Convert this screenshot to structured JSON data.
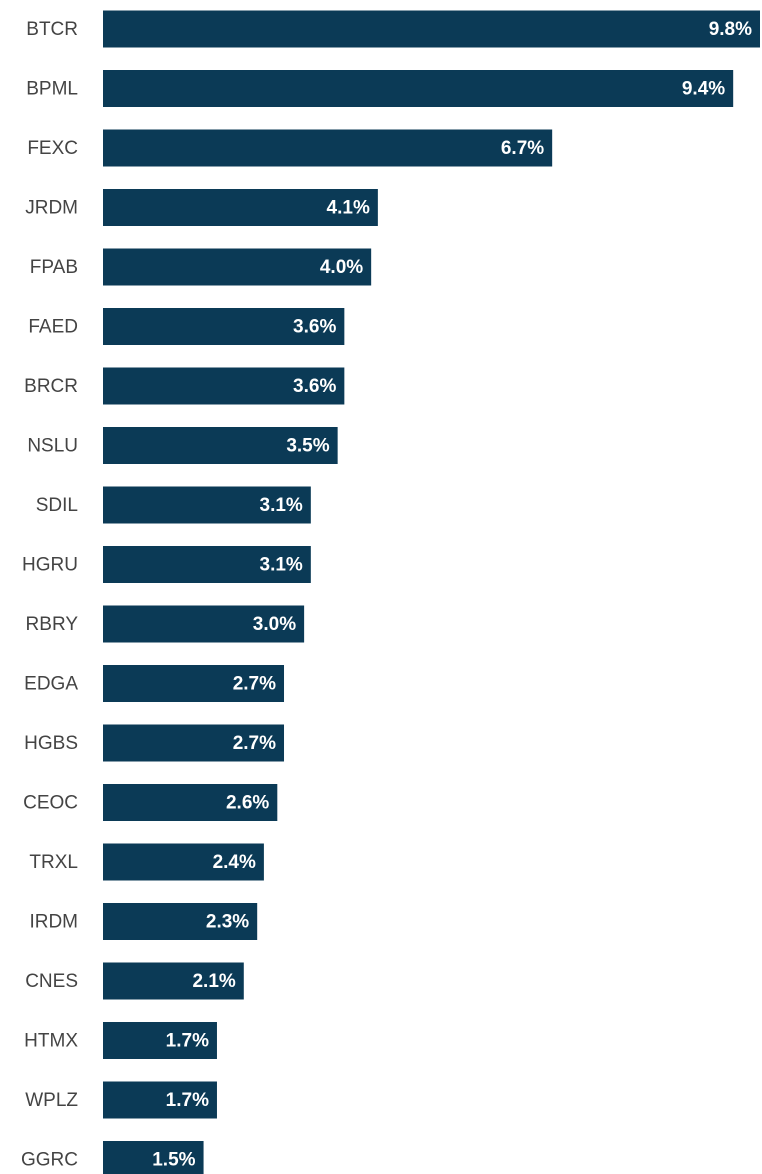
{
  "chart_data": {
    "type": "barh",
    "categories": [
      "BTCR",
      "BPML",
      "FEXC",
      "JRDM",
      "FPAB",
      "FAED",
      "BRCR",
      "NSLU",
      "SDIL",
      "HGRU",
      "RBRY",
      "EDGA",
      "HGBS",
      "CEOC",
      "TRXL",
      "IRDM",
      "CNES",
      "HTMX",
      "WPLZ",
      "GGRC"
    ],
    "values": [
      9.8,
      9.4,
      6.7,
      4.1,
      4.0,
      3.6,
      3.6,
      3.5,
      3.1,
      3.1,
      3.0,
      2.7,
      2.7,
      2.6,
      2.4,
      2.3,
      2.1,
      1.7,
      1.7,
      1.5
    ],
    "value_labels": [
      "9.8%",
      "9.4%",
      "6.7%",
      "4.1%",
      "4.0%",
      "3.6%",
      "3.6%",
      "3.5%",
      "3.1%",
      "3.1%",
      "3.0%",
      "2.7%",
      "2.7%",
      "2.6%",
      "2.4%",
      "2.3%",
      "2.1%",
      "1.7%",
      "1.7%",
      "1.5%"
    ],
    "color": "#0b3a56"
  }
}
